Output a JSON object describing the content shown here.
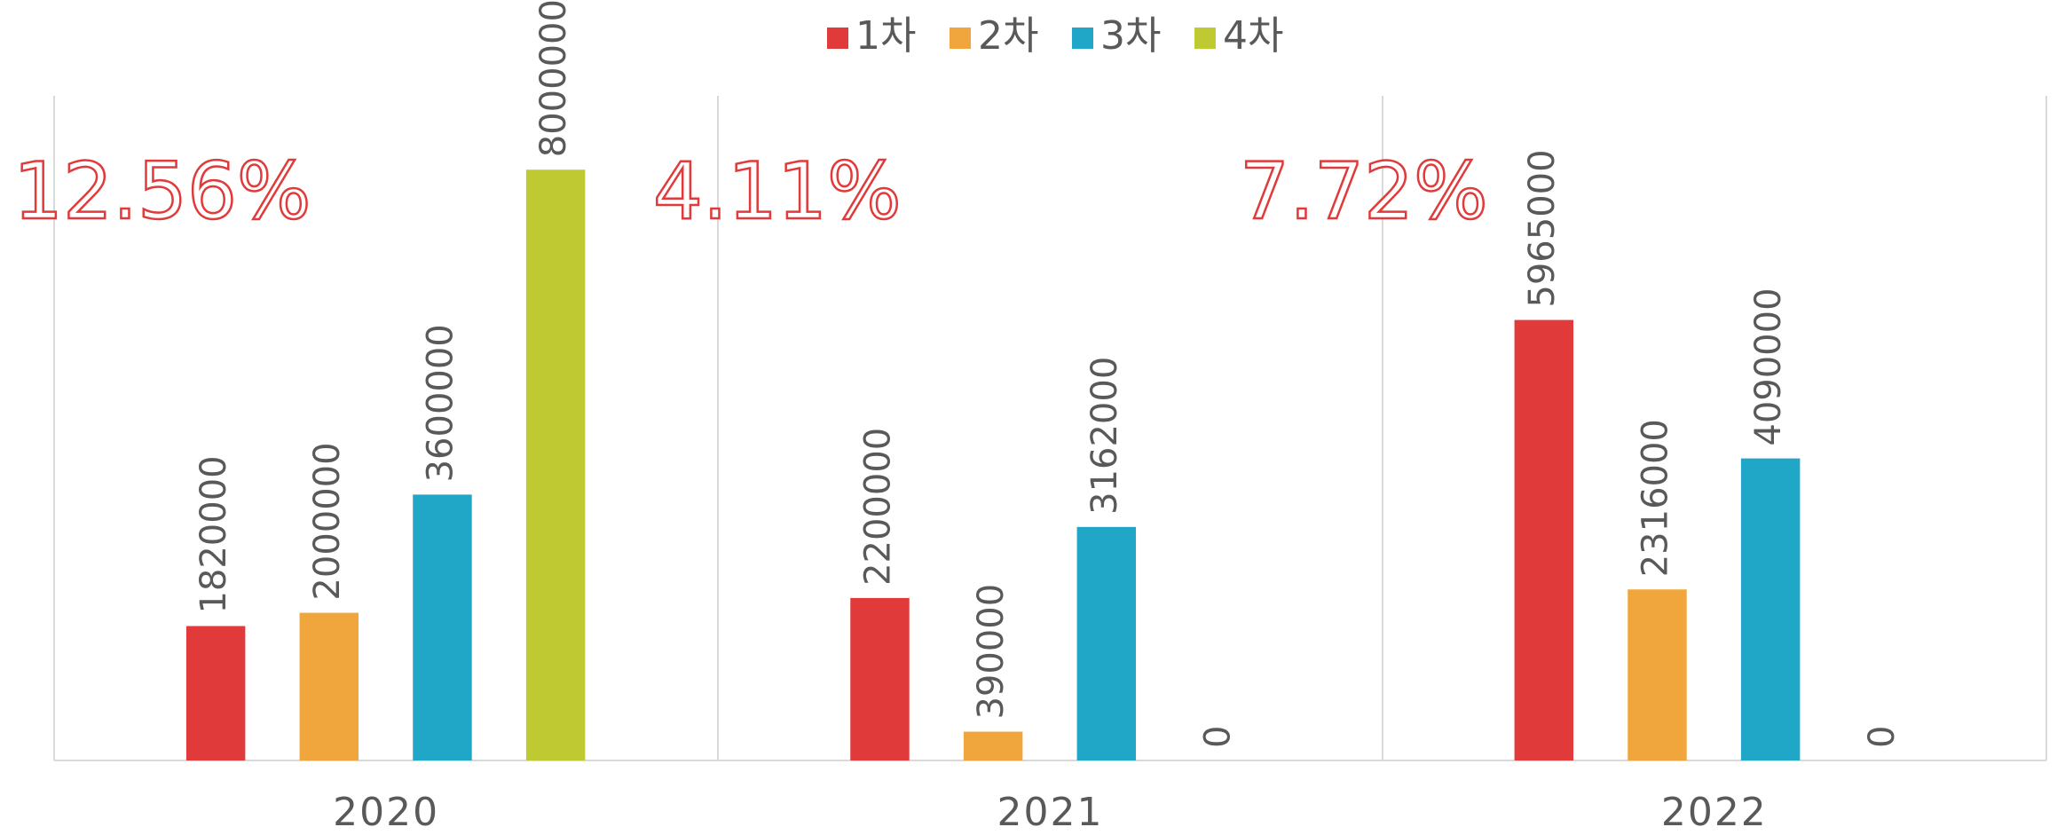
{
  "chart_data": {
    "type": "bar",
    "categories": [
      "2020",
      "2021",
      "2022"
    ],
    "series": [
      {
        "name": "1차",
        "color": "#e03a3a",
        "values": [
          1820000,
          2200000,
          5965000
        ]
      },
      {
        "name": "2차",
        "color": "#f0a63c",
        "values": [
          2000000,
          390000,
          2316000
        ]
      },
      {
        "name": "3차",
        "color": "#20a6c6",
        "values": [
          3600000,
          3162000,
          4090000
        ]
      },
      {
        "name": "4차",
        "color": "#bfca33",
        "values": [
          8000000,
          0,
          0
        ]
      }
    ],
    "annotations": [
      "12.56%",
      "4.11%",
      "7.72%"
    ],
    "ylim": [
      0,
      9000000
    ],
    "legend": "top"
  }
}
